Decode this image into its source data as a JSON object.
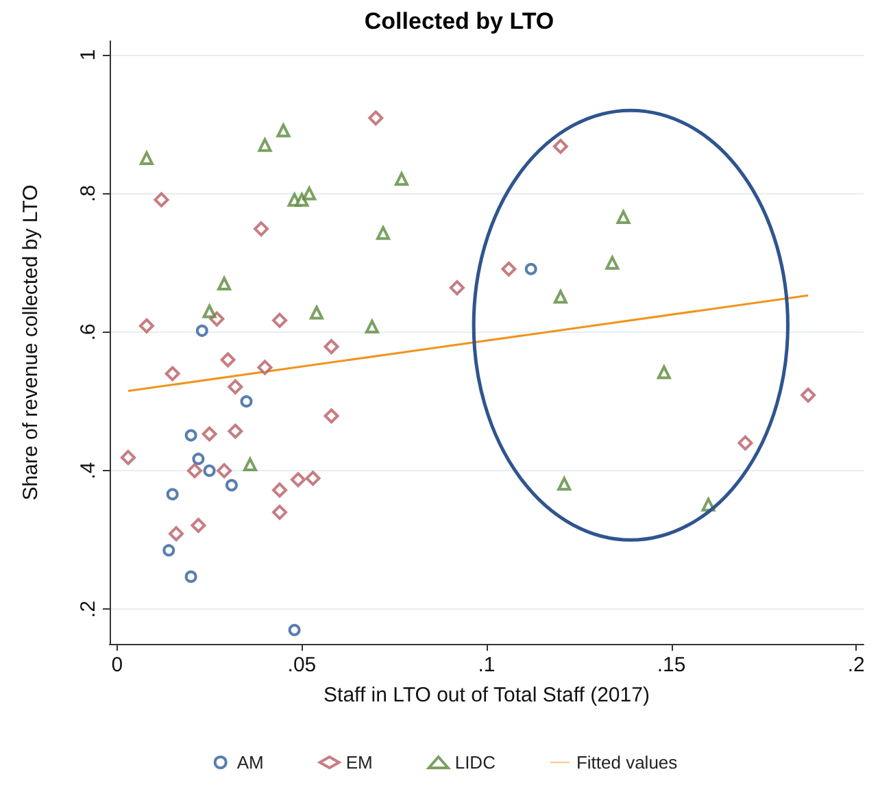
{
  "chart_data": {
    "type": "scatter",
    "title": "Collected by LTO",
    "xlabel": "Staff in LTO out of Total Staff (2017)",
    "ylabel": "Share of revenue collected by LTO",
    "xlim": [
      -0.002,
      0.202
    ],
    "ylim": [
      0.15,
      1.02
    ],
    "xticks": [
      0,
      {
        "value": 0.05,
        "label": ".05"
      },
      {
        "value": 0.1,
        "label": ".1"
      },
      {
        "value": 0.15,
        "label": ".15"
      },
      {
        "value": 0.2,
        "label": ".2"
      }
    ],
    "yticks": [
      {
        "value": 0.2,
        "label": ".2"
      },
      {
        "value": 0.4,
        "label": ".4"
      },
      {
        "value": 0.6,
        "label": ".6"
      },
      {
        "value": 0.8,
        "label": ".8"
      },
      1
    ],
    "grid": "y",
    "legend": "bottom",
    "series": [
      {
        "name": "AM",
        "marker": "circle",
        "color": "#2e5f9a",
        "x": [
          0.023,
          0.02,
          0.015,
          0.014,
          0.02,
          0.022,
          0.025,
          0.031,
          0.035,
          0.048,
          0.112
        ],
        "values": [
          0.602,
          0.451,
          0.366,
          0.285,
          0.247,
          0.417,
          0.4,
          0.379,
          0.5,
          0.17,
          0.691
        ]
      },
      {
        "name": "EM",
        "marker": "diamond",
        "color": "#b85c63",
        "x": [
          0.003,
          0.012,
          0.008,
          0.015,
          0.016,
          0.022,
          0.021,
          0.025,
          0.027,
          0.03,
          0.032,
          0.032,
          0.029,
          0.039,
          0.04,
          0.044,
          0.044,
          0.044,
          0.049,
          0.053,
          0.058,
          0.058,
          0.07,
          0.092,
          0.106,
          0.12,
          0.17,
          0.187
        ],
        "values": [
          0.419,
          0.791,
          0.609,
          0.54,
          0.309,
          0.321,
          0.4,
          0.453,
          0.619,
          0.56,
          0.521,
          0.457,
          0.4,
          0.749,
          0.549,
          0.617,
          0.372,
          0.34,
          0.387,
          0.389,
          0.579,
          0.479,
          0.909,
          0.664,
          0.691,
          0.868,
          0.44,
          0.509
        ]
      },
      {
        "name": "LIDC",
        "marker": "triangle",
        "color": "#5a8a3a",
        "x": [
          0.008,
          0.029,
          0.025,
          0.04,
          0.045,
          0.048,
          0.05,
          0.052,
          0.054,
          0.069,
          0.072,
          0.077,
          0.036,
          0.137,
          0.134,
          0.12,
          0.148,
          0.121,
          0.16
        ],
        "values": [
          0.851,
          0.67,
          0.63,
          0.87,
          0.891,
          0.791,
          0.791,
          0.8,
          0.628,
          0.608,
          0.743,
          0.821,
          0.409,
          0.766,
          0.7,
          0.651,
          0.542,
          0.381,
          0.351
        ]
      },
      {
        "name": "Fitted values",
        "type": "line",
        "marker": "none",
        "line_style": "solid",
        "color": "#f0941e",
        "x": [
          0.003,
          0.187
        ],
        "values": [
          0.515,
          0.653
        ]
      }
    ]
  }
}
